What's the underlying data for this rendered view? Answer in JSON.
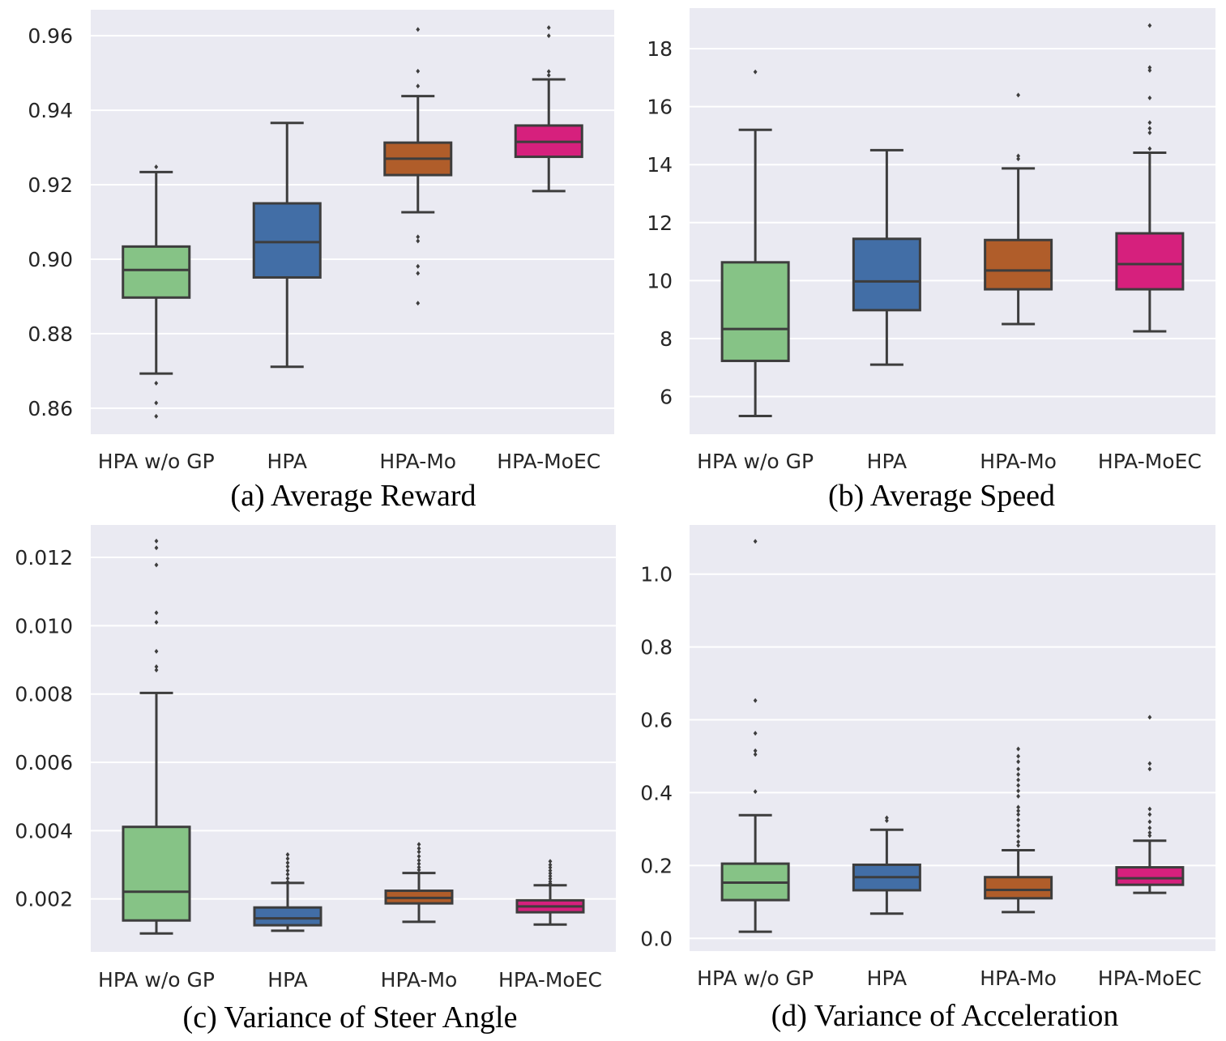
{
  "chart_data": [
    {
      "type": "box",
      "caption": "(a) Average Reward",
      "categories": [
        "HPA w/o GP",
        "HPA",
        "HPA-Mo",
        "HPA-MoEC"
      ],
      "ylim": [
        0.853,
        0.967
      ],
      "yticks": [
        0.86,
        0.88,
        0.9,
        0.92,
        0.94,
        0.96
      ],
      "ytick_labels": [
        "0.86",
        "0.88",
        "0.90",
        "0.92",
        "0.94",
        "0.96"
      ],
      "series": [
        {
          "name": "HPA w/o GP",
          "color": "#86c386",
          "whislo": 0.8693,
          "q1": 0.8897,
          "med": 0.8971,
          "q3": 0.9034,
          "whishi": 0.9234,
          "fliers": [
            0.9248,
            0.8667,
            0.8614,
            0.8578
          ]
        },
        {
          "name": "HPA",
          "color": "#426ea6",
          "whislo": 0.8711,
          "q1": 0.8951,
          "med": 0.9046,
          "q3": 0.915,
          "whishi": 0.9366,
          "fliers": []
        },
        {
          "name": "HPA-Mo",
          "color": "#b05d2a",
          "whislo": 0.9126,
          "q1": 0.9226,
          "med": 0.927,
          "q3": 0.9313,
          "whishi": 0.9438,
          "fliers": [
            0.9617,
            0.9505,
            0.9465,
            0.906,
            0.9049,
            0.8981,
            0.8962,
            0.8882
          ]
        },
        {
          "name": "HPA-MoEC",
          "color": "#d6207d",
          "whislo": 0.9183,
          "q1": 0.9275,
          "med": 0.9315,
          "q3": 0.9359,
          "whishi": 0.9483,
          "fliers": [
            0.9622,
            0.96,
            0.9504,
            0.9494
          ]
        }
      ]
    },
    {
      "type": "box",
      "caption": "(b) Average Speed",
      "categories": [
        "HPA w/o GP",
        "HPA",
        "HPA-Mo",
        "HPA-MoEC"
      ],
      "ylim": [
        4.7,
        19.4
      ],
      "yticks": [
        6,
        8,
        10,
        12,
        14,
        16,
        18
      ],
      "ytick_labels": [
        "6",
        "8",
        "10",
        "12",
        "14",
        "16",
        "18"
      ],
      "series": [
        {
          "name": "HPA w/o GP",
          "color": "#86c386",
          "whislo": 5.33,
          "q1": 7.23,
          "med": 8.33,
          "q3": 10.63,
          "whishi": 15.2,
          "fliers": [
            17.2
          ]
        },
        {
          "name": "HPA",
          "color": "#426ea6",
          "whislo": 7.1,
          "q1": 8.98,
          "med": 9.97,
          "q3": 11.44,
          "whishi": 14.5,
          "fliers": []
        },
        {
          "name": "HPA-Mo",
          "color": "#b05d2a",
          "whislo": 8.5,
          "q1": 9.7,
          "med": 10.35,
          "q3": 11.4,
          "whishi": 13.87,
          "fliers": [
            16.4,
            14.3,
            14.2
          ]
        },
        {
          "name": "HPA-MoEC",
          "color": "#d6207d",
          "whislo": 8.25,
          "q1": 9.7,
          "med": 10.57,
          "q3": 11.63,
          "whishi": 14.41,
          "fliers": [
            18.8,
            17.35,
            17.25,
            16.3,
            15.45,
            15.25,
            15.1,
            14.55
          ]
        }
      ]
    },
    {
      "type": "box",
      "caption": "(c) Variance of Steer Angle",
      "categories": [
        "HPA w/o GP",
        "HPA",
        "HPA-Mo",
        "HPA-MoEC"
      ],
      "ylim": [
        0.00045,
        0.01295
      ],
      "yticks": [
        0.002,
        0.004,
        0.006,
        0.008,
        0.01,
        0.012
      ],
      "ytick_labels": [
        "0.002",
        "0.004",
        "0.006",
        "0.008",
        "0.010",
        "0.012"
      ],
      "series": [
        {
          "name": "HPA w/o GP",
          "color": "#86c386",
          "whislo": 0.00099,
          "q1": 0.00137,
          "med": 0.00221,
          "q3": 0.00411,
          "whishi": 0.00803,
          "fliers": [
            0.01248,
            0.01228,
            0.01178,
            0.01038,
            0.0101,
            0.00925,
            0.0088,
            0.0087
          ]
        },
        {
          "name": "HPA",
          "color": "#426ea6",
          "whislo": 0.00107,
          "q1": 0.00123,
          "med": 0.00143,
          "q3": 0.00175,
          "whishi": 0.00247,
          "fliers": [
            0.0033,
            0.00318,
            0.00306,
            0.00295,
            0.00283,
            0.00272,
            0.0026,
            0.0025
          ]
        },
        {
          "name": "HPA-Mo",
          "color": "#b05d2a",
          "whislo": 0.00133,
          "q1": 0.00187,
          "med": 0.00203,
          "q3": 0.00224,
          "whishi": 0.00276,
          "fliers": [
            0.0036,
            0.00348,
            0.00338,
            0.00325,
            0.00313,
            0.00303,
            0.00293,
            0.00285
          ]
        },
        {
          "name": "HPA-MoEC",
          "color": "#d6207d",
          "whislo": 0.00125,
          "q1": 0.00161,
          "med": 0.00178,
          "q3": 0.00196,
          "whishi": 0.0024,
          "fliers": [
            0.0031,
            0.003,
            0.00292,
            0.00283,
            0.00275,
            0.00267,
            0.00259,
            0.00251,
            0.00245
          ]
        }
      ]
    },
    {
      "type": "box",
      "caption": "(d) Variance of Acceleration",
      "categories": [
        "HPA w/o GP",
        "HPA",
        "HPA-Mo",
        "HPA-MoEC"
      ],
      "ylim": [
        -0.035,
        1.135
      ],
      "yticks": [
        0.0,
        0.2,
        0.4,
        0.6,
        0.8,
        1.0
      ],
      "ytick_labels": [
        "0.0",
        "0.2",
        "0.4",
        "0.6",
        "0.8",
        "1.0"
      ],
      "series": [
        {
          "name": "HPA w/o GP",
          "color": "#86c386",
          "whislo": 0.018,
          "q1": 0.105,
          "med": 0.153,
          "q3": 0.205,
          "whishi": 0.338,
          "fliers": [
            1.09,
            0.653,
            0.563,
            0.515,
            0.505,
            0.403
          ]
        },
        {
          "name": "HPA",
          "color": "#426ea6",
          "whislo": 0.068,
          "q1": 0.132,
          "med": 0.168,
          "q3": 0.202,
          "whishi": 0.298,
          "fliers": [
            0.331,
            0.323
          ]
        },
        {
          "name": "HPA-Mo",
          "color": "#b05d2a",
          "whislo": 0.072,
          "q1": 0.11,
          "med": 0.133,
          "q3": 0.168,
          "whishi": 0.242,
          "fliers": [
            0.52,
            0.5,
            0.485,
            0.465,
            0.45,
            0.435,
            0.42,
            0.405,
            0.39,
            0.36,
            0.35,
            0.34,
            0.325,
            0.31,
            0.295,
            0.28,
            0.265,
            0.255
          ]
        },
        {
          "name": "HPA-MoEC",
          "color": "#d6207d",
          "whislo": 0.125,
          "q1": 0.147,
          "med": 0.165,
          "q3": 0.195,
          "whishi": 0.268,
          "fliers": [
            0.607,
            0.48,
            0.465,
            0.355,
            0.34,
            0.32,
            0.303,
            0.29,
            0.282
          ]
        }
      ]
    }
  ]
}
